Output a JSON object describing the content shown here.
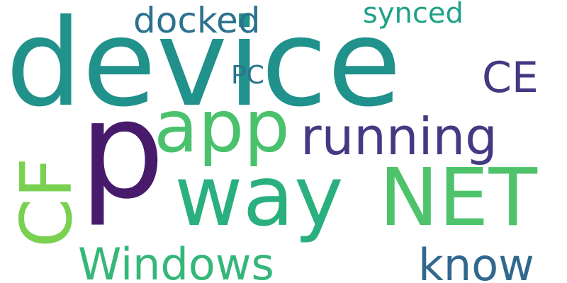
{
  "words": [
    {
      "text": "device",
      "color": "#21918c"
    },
    {
      "text": "p",
      "color": "#481a6c"
    },
    {
      "text": "way",
      "color": "#2ab07f"
    },
    {
      "text": "NET",
      "color": "#4ec36b"
    },
    {
      "text": "app",
      "color": "#4ac16d"
    },
    {
      "text": "running",
      "color": "#443a83"
    },
    {
      "text": "CF",
      "color": "#7ad151"
    },
    {
      "text": "Windows",
      "color": "#35b779"
    },
    {
      "text": "know",
      "color": "#31688e"
    },
    {
      "text": "CE",
      "color": "#453781"
    },
    {
      "text": "docked",
      "color": "#2c728e"
    },
    {
      "text": "synced",
      "color": "#1fa187"
    },
    {
      "text": "PC",
      "color": "#2c728e"
    }
  ]
}
